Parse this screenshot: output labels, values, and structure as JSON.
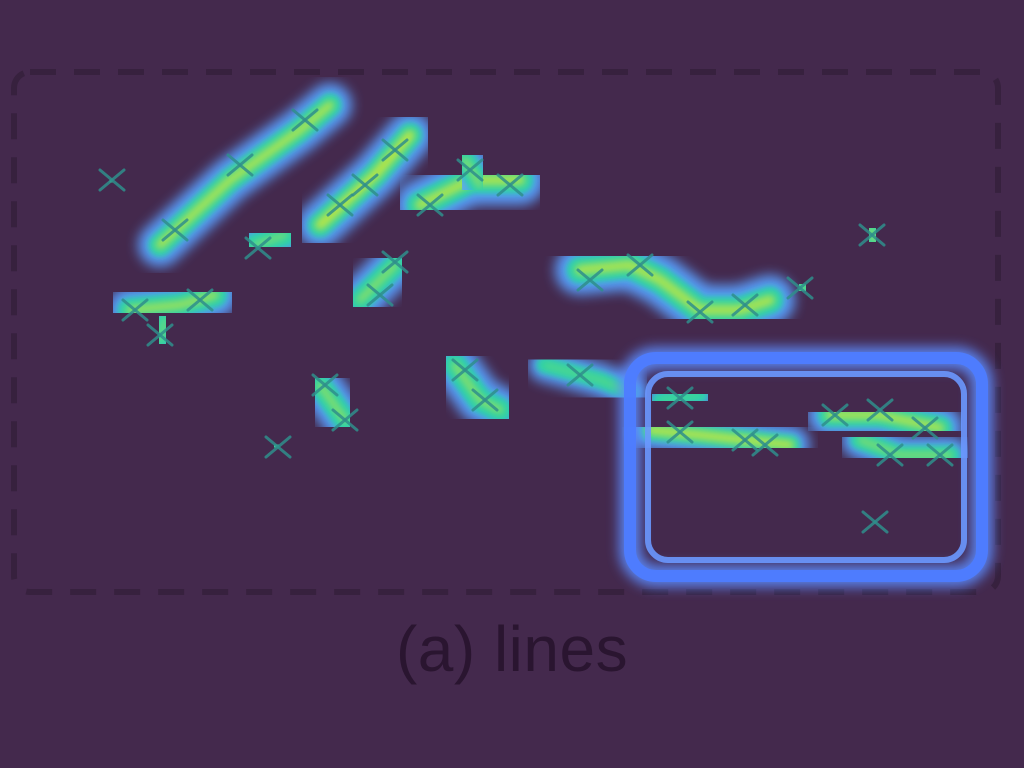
{
  "caption": "(a) lines",
  "colors": {
    "background": "#44294d",
    "frame_dash": "#37213e",
    "glow_outer": "#5aa0ff",
    "glow_mid": "#25d3a8",
    "glow_core": "#c8e83a",
    "marker": "#2f8f8c",
    "caption_text": "#2a1530"
  },
  "inset_frame": {
    "color": "#5b8cff"
  }
}
